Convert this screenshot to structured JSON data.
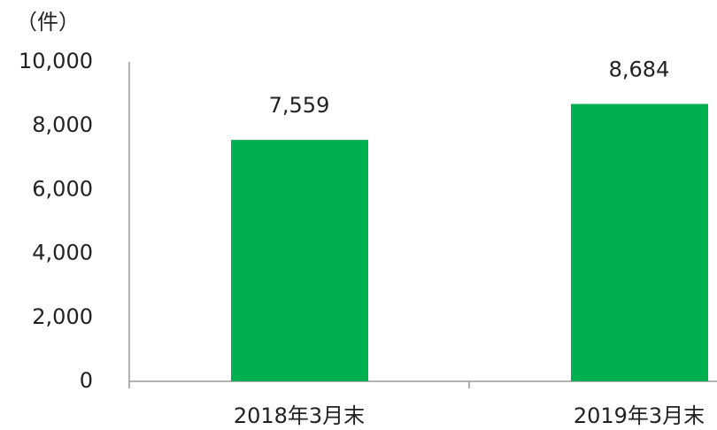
{
  "chart_data": {
    "type": "bar",
    "unit_label": "（件）",
    "categories": [
      "2018年3月末",
      "2019年3月末"
    ],
    "values": [
      7559,
      8684
    ],
    "value_labels": [
      "7,559",
      "8,684"
    ],
    "color": "#00b050",
    "ylim": [
      0,
      10000
    ],
    "yticks": [
      0,
      {
        "value": 2000,
        "label": "2,000"
      },
      {
        "value": 4000,
        "label": "4,000"
      },
      {
        "value": 6000,
        "label": "6,000"
      },
      {
        "value": 8000,
        "label": "8,000"
      },
      {
        "value": 10000,
        "label": "10,000"
      }
    ],
    "grid": false
  }
}
